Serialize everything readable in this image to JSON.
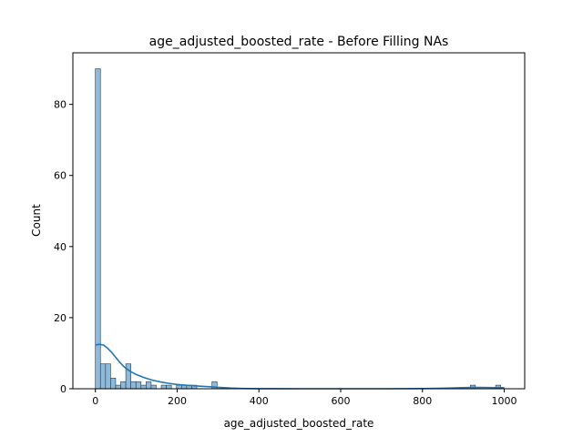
{
  "chart_data": {
    "type": "bar",
    "title": "age_adjusted_boosted_rate - Before Filling NAs",
    "xlabel": "age_adjusted_boosted_rate",
    "ylabel": "Count",
    "xlim": [
      -55,
      1050
    ],
    "ylim": [
      0,
      94.5
    ],
    "xticks": [
      0,
      200,
      400,
      600,
      800,
      1000
    ],
    "yticks": [
      0,
      20,
      40,
      60,
      80
    ],
    "bin_width": 12.4,
    "bins": [
      {
        "start": 0.0,
        "count": 90
      },
      {
        "start": 12.4,
        "count": 7
      },
      {
        "start": 24.8,
        "count": 7
      },
      {
        "start": 37.2,
        "count": 3
      },
      {
        "start": 49.6,
        "count": 1
      },
      {
        "start": 62.0,
        "count": 2
      },
      {
        "start": 74.4,
        "count": 7
      },
      {
        "start": 86.8,
        "count": 2
      },
      {
        "start": 99.2,
        "count": 2
      },
      {
        "start": 111.6,
        "count": 1
      },
      {
        "start": 124.0,
        "count": 2
      },
      {
        "start": 136.4,
        "count": 1
      },
      {
        "start": 161.2,
        "count": 1
      },
      {
        "start": 173.6,
        "count": 1
      },
      {
        "start": 198.4,
        "count": 1
      },
      {
        "start": 210.8,
        "count": 1
      },
      {
        "start": 223.2,
        "count": 1
      },
      {
        "start": 235.6,
        "count": 1
      },
      {
        "start": 285.2,
        "count": 2
      },
      {
        "start": 917.0,
        "count": 1
      },
      {
        "start": 979.0,
        "count": 1
      }
    ],
    "kde": {
      "name": "",
      "x": [
        0,
        10,
        20,
        30,
        40,
        50,
        60,
        70,
        80,
        90,
        100,
        120,
        140,
        160,
        180,
        200,
        220,
        240,
        260,
        280,
        300,
        330,
        360,
        400,
        450,
        500,
        600,
        700,
        800,
        850,
        880,
        900,
        920,
        940,
        960,
        980,
        1000
      ],
      "y": [
        12.3,
        12.5,
        12.3,
        11.4,
        10.2,
        8.8,
        7.4,
        6.2,
        5.3,
        4.6,
        4.0,
        3.1,
        2.4,
        1.9,
        1.5,
        1.2,
        1.0,
        0.85,
        0.7,
        0.55,
        0.4,
        0.2,
        0.08,
        0.02,
        0.01,
        0.0,
        0.0,
        0.0,
        0.05,
        0.15,
        0.25,
        0.32,
        0.38,
        0.38,
        0.35,
        0.32,
        0.3
      ]
    },
    "bar_color": "#8fb9d6",
    "bar_edge_color": "#1f3b57",
    "line_color": "#1f77b4",
    "grid": false,
    "legend": "none"
  }
}
